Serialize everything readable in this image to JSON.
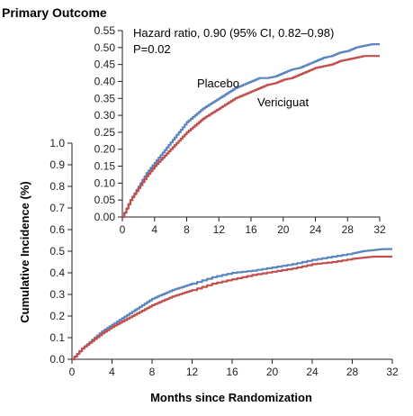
{
  "figure": {
    "title": "Primary Outcome",
    "y_axis_title": "Cumulative Incidence (%)",
    "x_axis_title": "Months since Randomization"
  },
  "colors": {
    "placebo": "#5b85bf",
    "vericiguat": "#c0504d",
    "axis": "#231f20"
  },
  "chart_data": [
    {
      "type": "line",
      "panel": "main",
      "xlabel": "Months since Randomization",
      "ylabel": "Cumulative Incidence (%)",
      "xlim": [
        0,
        32
      ],
      "ylim": [
        0,
        1.0
      ],
      "x_ticks": [
        0,
        4,
        8,
        12,
        16,
        20,
        24,
        28,
        32
      ],
      "x_tick_labels": [
        "0",
        "4",
        "8",
        "12",
        "16",
        "20",
        "24",
        "28",
        "32"
      ],
      "y_ticks": [
        0,
        0.1,
        0.2,
        0.3,
        0.4,
        0.5,
        0.6,
        0.7,
        0.8,
        0.9,
        1.0
      ],
      "y_tick_labels": [
        "0.0",
        "0.1",
        "0.2",
        "0.3",
        "0.4",
        "0.5",
        "0.6",
        "0.7",
        "0.8",
        "0.9",
        "1.0"
      ],
      "grid": false,
      "series": [
        {
          "name": "Placebo",
          "color": "#5b85bf",
          "x": [
            0,
            1,
            2,
            3,
            4,
            5,
            6,
            7,
            8,
            9,
            10,
            11,
            12,
            14,
            16,
            18,
            20,
            22,
            24,
            26,
            28,
            29,
            30,
            31,
            32
          ],
          "y": [
            0,
            0.05,
            0.09,
            0.13,
            0.16,
            0.19,
            0.22,
            0.25,
            0.28,
            0.3,
            0.32,
            0.335,
            0.35,
            0.38,
            0.4,
            0.41,
            0.425,
            0.44,
            0.46,
            0.475,
            0.49,
            0.5,
            0.505,
            0.51,
            0.51
          ]
        },
        {
          "name": "Vericiguat",
          "color": "#c0504d",
          "x": [
            0,
            1,
            2,
            3,
            4,
            5,
            6,
            7,
            8,
            9,
            10,
            11,
            12,
            14,
            16,
            18,
            20,
            22,
            24,
            26,
            28,
            29,
            30,
            31,
            32
          ],
          "y": [
            0,
            0.05,
            0.085,
            0.12,
            0.15,
            0.175,
            0.2,
            0.225,
            0.25,
            0.27,
            0.29,
            0.305,
            0.32,
            0.35,
            0.37,
            0.39,
            0.405,
            0.42,
            0.44,
            0.45,
            0.465,
            0.47,
            0.475,
            0.475,
            0.475
          ]
        }
      ]
    },
    {
      "type": "line",
      "panel": "inset",
      "xlim": [
        0,
        32
      ],
      "ylim": [
        0,
        0.55
      ],
      "x_ticks": [
        0,
        4,
        8,
        12,
        16,
        20,
        24,
        28,
        32
      ],
      "x_tick_labels": [
        "0",
        "4",
        "8",
        "12",
        "16",
        "20",
        "24",
        "28",
        "32"
      ],
      "y_ticks": [
        0,
        0.05,
        0.1,
        0.15,
        0.2,
        0.25,
        0.3,
        0.35,
        0.4,
        0.45,
        0.5,
        0.55
      ],
      "y_tick_labels": [
        "0.00",
        "0.05",
        "0.10",
        "0.15",
        "0.20",
        "0.25",
        "0.30",
        "0.35",
        "0.40",
        "0.45",
        "0.50",
        "0.55"
      ],
      "grid": false,
      "annotations": [
        "Hazard ratio, 0.90 (95% CI, 0.82–0.98)",
        "P=0.02"
      ],
      "series": [
        {
          "name": "Placebo",
          "color": "#5b85bf",
          "x": [
            0,
            1,
            2,
            3,
            4,
            5,
            6,
            7,
            8,
            9,
            10,
            11,
            12,
            13,
            14,
            15,
            16,
            17,
            18,
            19,
            20,
            21,
            22,
            23,
            24,
            25,
            26,
            27,
            28,
            29,
            30,
            31,
            32
          ],
          "y": [
            0,
            0.05,
            0.09,
            0.13,
            0.16,
            0.19,
            0.22,
            0.25,
            0.28,
            0.3,
            0.32,
            0.335,
            0.35,
            0.365,
            0.38,
            0.39,
            0.4,
            0.41,
            0.41,
            0.415,
            0.425,
            0.435,
            0.44,
            0.45,
            0.46,
            0.47,
            0.475,
            0.485,
            0.49,
            0.5,
            0.505,
            0.51,
            0.51
          ]
        },
        {
          "name": "Vericiguat",
          "color": "#c0504d",
          "x": [
            0,
            1,
            2,
            3,
            4,
            5,
            6,
            7,
            8,
            9,
            10,
            11,
            12,
            13,
            14,
            15,
            16,
            17,
            18,
            19,
            20,
            21,
            22,
            23,
            24,
            25,
            26,
            27,
            28,
            29,
            30,
            31,
            32
          ],
          "y": [
            0,
            0.05,
            0.085,
            0.12,
            0.15,
            0.175,
            0.2,
            0.225,
            0.25,
            0.27,
            0.29,
            0.305,
            0.32,
            0.335,
            0.35,
            0.36,
            0.37,
            0.38,
            0.39,
            0.395,
            0.405,
            0.41,
            0.42,
            0.43,
            0.44,
            0.445,
            0.45,
            0.46,
            0.465,
            0.47,
            0.475,
            0.475,
            0.475
          ]
        }
      ]
    }
  ]
}
